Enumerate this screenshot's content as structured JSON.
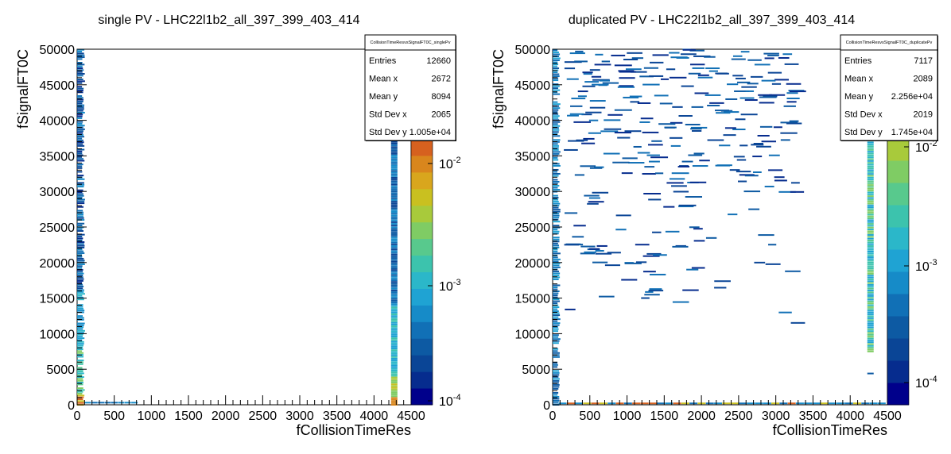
{
  "palette": [
    "#00008b",
    "#062c8e",
    "#0a4596",
    "#0d5aa3",
    "#1170b6",
    "#168bc8",
    "#1fa3d3",
    "#2bb7c9",
    "#3cc3ad",
    "#58c98d",
    "#7fcc64",
    "#a8ca3b",
    "#c9c020",
    "#d9a61d",
    "#d9861d",
    "#d6611f"
  ],
  "chart_data": [
    {
      "type": "heatmap",
      "title": "single PV - LHC22l1b2_all_397_399_403_414",
      "xlabel": "fCollisionTimeRes",
      "ylabel": "fSignalFT0C",
      "xlim": [
        0,
        4500
      ],
      "ylim": [
        0,
        50000
      ],
      "x_ticks": [
        "0",
        "500",
        "1000",
        "1500",
        "2000",
        "2500",
        "3000",
        "3500",
        "4000",
        "4500"
      ],
      "y_ticks": [
        "0",
        "5000",
        "10000",
        "15000",
        "20000",
        "25000",
        "30000",
        "35000",
        "40000",
        "45000",
        "50000"
      ],
      "z_scale": "log",
      "z_ticks": [
        "10^-4",
        "10^-3",
        "10^-2"
      ],
      "stats": {
        "title": "CollisionTimeResvsSignalFT0C_singlePv",
        "rows": [
          {
            "label": "Entries",
            "value": "12660"
          },
          {
            "label": "Mean x",
            "value": "2672"
          },
          {
            "label": "Mean y",
            "value": "8094"
          },
          {
            "label": "Std Dev x",
            "value": "2065"
          },
          {
            "label": "Std Dev y",
            "value": "1.005e+04"
          }
        ]
      }
    },
    {
      "type": "heatmap",
      "title": "duplicated PV - LHC22l1b2_all_397_399_403_414",
      "xlabel": "fCollisionTimeRes",
      "ylabel": "fSignalFT0C",
      "xlim": [
        0,
        4500
      ],
      "ylim": [
        0,
        50000
      ],
      "x_ticks": [
        "0",
        "500",
        "1000",
        "1500",
        "2000",
        "2500",
        "3000",
        "3500",
        "4000",
        "4500"
      ],
      "y_ticks": [
        "0",
        "5000",
        "10000",
        "15000",
        "20000",
        "25000",
        "30000",
        "35000",
        "40000",
        "45000",
        "50000"
      ],
      "z_scale": "log",
      "z_ticks": [
        "10^-4",
        "10^-3",
        "10^-2"
      ],
      "stats": {
        "title": "CollisionTimeResvsSignalFT0C_duplicatePv",
        "rows": [
          {
            "label": "Entries",
            "value": "7117"
          },
          {
            "label": "Mean x",
            "value": "2089"
          },
          {
            "label": "Mean y",
            "value": "2.256e+04"
          },
          {
            "label": "Std Dev x",
            "value": "2019"
          },
          {
            "label": "Std Dev y",
            "value": "1.745e+04"
          }
        ]
      }
    }
  ]
}
